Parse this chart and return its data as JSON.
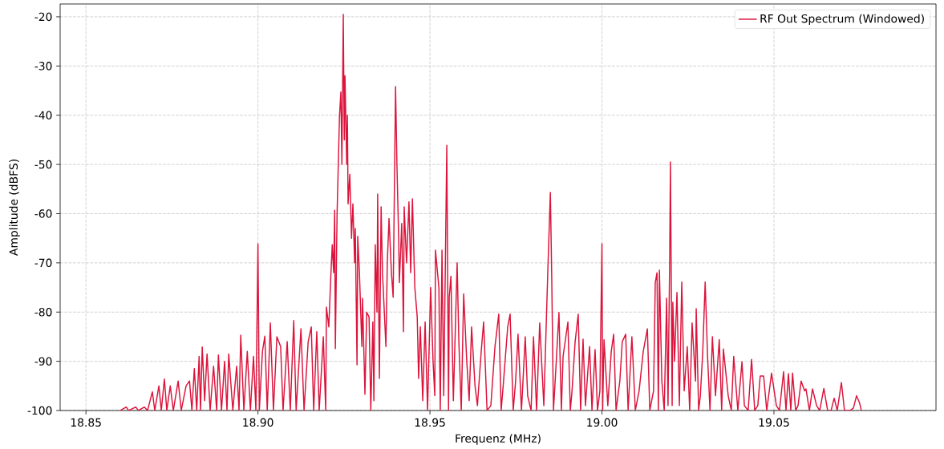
{
  "chart_data": {
    "type": "line",
    "xlabel": "Frequenz (MHz)",
    "ylabel": "Amplitude (dBFS)",
    "xlim": [
      18.8425,
      19.0971
    ],
    "ylim": [
      -100,
      -17.4
    ],
    "xticks": [
      18.85,
      {
        "value": 18.9,
        "label": "18.90"
      },
      18.95,
      {
        "value": 19.0,
        "label": "19.00"
      },
      19.05
    ],
    "yticks": [
      -100,
      -90,
      -80,
      -70,
      -60,
      -50,
      -40,
      -30,
      -20
    ],
    "grid": true,
    "legend": "top right",
    "x": [
      18.86,
      18.8617,
      18.8624,
      18.8645,
      18.8652,
      18.867,
      18.8679,
      18.8693,
      18.87,
      18.8712,
      18.8719,
      18.8728,
      18.8735,
      18.8745,
      18.8754,
      18.8768,
      18.8777,
      18.8791,
      18.8801,
      18.8808,
      18.8815,
      18.8822,
      18.8829,
      18.8833,
      18.8838,
      18.8845,
      18.8852,
      18.8861,
      18.8871,
      18.888,
      18.8885,
      18.8894,
      18.8903,
      18.891,
      18.8915,
      18.8927,
      18.8938,
      18.8945,
      18.895,
      18.8959,
      18.8969,
      18.8978,
      18.8987,
      18.8994,
      18.9,
      18.9004,
      18.9013,
      18.902,
      18.9027,
      18.9036,
      18.9045,
      18.9055,
      18.9066,
      18.9073,
      18.9085,
      18.9094,
      18.9104,
      18.9111,
      18.9125,
      18.9134,
      18.9146,
      18.9155,
      18.9162,
      18.9171,
      18.9178,
      18.919,
      18.9197,
      18.9199,
      18.9206,
      18.9211,
      18.9216,
      18.922,
      18.9223,
      18.9225,
      18.923,
      18.9237,
      18.9241,
      18.9244,
      18.9248,
      18.9251,
      18.9253,
      18.9258,
      18.926,
      18.9262,
      18.9267,
      18.9272,
      18.9276,
      18.9281,
      18.9283,
      18.9288,
      18.929,
      18.9295,
      18.9302,
      18.9304,
      18.9311,
      18.9316,
      18.9323,
      18.9328,
      18.9334,
      18.9337,
      18.9341,
      18.9346,
      18.9348,
      18.9353,
      18.9358,
      18.9362,
      18.9372,
      18.9376,
      18.9381,
      18.9388,
      18.9393,
      18.94,
      18.9404,
      18.9409,
      18.9411,
      18.9418,
      18.9423,
      18.9425,
      18.9432,
      18.9439,
      18.9444,
      18.9449,
      18.9456,
      18.9463,
      18.9467,
      18.9472,
      18.9479,
      18.9486,
      18.9493,
      18.9502,
      18.9509,
      18.9514,
      18.9516,
      18.9526,
      18.953,
      18.9535,
      18.954,
      18.9549,
      18.9554,
      18.9556,
      18.9561,
      18.9568,
      18.9579,
      18.9584,
      18.9591,
      18.9598,
      18.9607,
      18.9614,
      18.9621,
      18.9631,
      18.9638,
      18.9649,
      18.9656,
      18.9666,
      18.9677,
      18.9689,
      18.97,
      18.9707,
      18.9714,
      18.9726,
      18.9733,
      18.9742,
      18.9749,
      18.9756,
      18.9766,
      18.9777,
      18.9784,
      18.9794,
      18.9801,
      18.981,
      18.9819,
      18.9831,
      18.9843,
      18.985,
      18.9854,
      18.9859,
      18.9864,
      18.9875,
      18.9882,
      18.9887,
      18.9901,
      18.9908,
      18.9913,
      18.9922,
      18.9931,
      18.9938,
      18.9945,
      18.9952,
      18.9964,
      18.9971,
      18.998,
      18.9987,
      18.9994,
      19.0,
      19.0002,
      19.0006,
      19.0017,
      19.0027,
      19.0034,
      19.0041,
      19.0052,
      19.0059,
      19.0069,
      19.0076,
      19.0087,
      19.0097,
      19.0108,
      19.012,
      19.0132,
      19.0139,
      19.015,
      19.0155,
      19.016,
      19.0164,
      19.0167,
      19.0174,
      19.0181,
      19.0188,
      19.0192,
      19.0197,
      19.0199,
      19.0204,
      19.0206,
      19.0211,
      19.0218,
      19.0225,
      19.0232,
      19.0239,
      19.0248,
      19.0255,
      19.0262,
      19.0272,
      19.0274,
      19.0281,
      19.0286,
      19.0293,
      19.03,
      19.0307,
      19.0314,
      19.0321,
      19.033,
      19.0341,
      19.0348,
      19.0353,
      19.0367,
      19.0376,
      19.0383,
      19.0395,
      19.0407,
      19.0414,
      19.0425,
      19.0435,
      19.0444,
      19.0453,
      19.046,
      19.047,
      19.0479,
      19.0493,
      19.0507,
      19.0516,
      19.0528,
      19.0535,
      19.0542,
      19.0549,
      19.0554,
      19.0563,
      19.057,
      19.0579,
      19.0589,
      19.0593,
      19.0603,
      19.0612,
      19.0624,
      19.0633,
      19.0645,
      19.0656,
      19.0666,
      19.0675,
      19.0684,
      19.0696,
      19.0705,
      19.0721,
      19.0731,
      19.074,
      19.0749,
      19.0754
    ],
    "series": [
      {
        "name": "RF Out Spectrum (Windowed)",
        "color": "#dc143c",
        "values": [
          -100,
          -99.3,
          -100,
          -99.3,
          -100,
          -99.3,
          -100,
          -96.2,
          -100,
          -95,
          -100,
          -93.6,
          -100,
          -95,
          -100,
          -94,
          -100,
          -95,
          -94,
          -100,
          -91.5,
          -100,
          -89,
          -100,
          -87.1,
          -98,
          -88.5,
          -100,
          -91,
          -100,
          -88.7,
          -100,
          -90,
          -100,
          -88.5,
          -100,
          -91,
          -100,
          -84.7,
          -100,
          -88,
          -100,
          -89,
          -100,
          -66.1,
          -100,
          -88,
          -84.9,
          -100,
          -82.2,
          -100,
          -85,
          -87,
          -100,
          -86,
          -100,
          -81.7,
          -100,
          -83.4,
          -100,
          -86,
          -83,
          -100,
          -84,
          -100,
          -85,
          -100,
          -79,
          -83,
          -74,
          -66.3,
          -72,
          -59.3,
          -87.4,
          -60,
          -40.2,
          -35.3,
          -50,
          -19.5,
          -45,
          -32,
          -50,
          -40,
          -58,
          -52,
          -65,
          -58,
          -70,
          -63,
          -90.7,
          -64.6,
          -72,
          -87,
          -77.2,
          -96.7,
          -80,
          -81,
          -100,
          -82,
          -98,
          -66.3,
          -80,
          -56,
          -93.5,
          -58.6,
          -72,
          -87,
          -70,
          -61,
          -72,
          -77,
          -34.2,
          -50,
          -65,
          -74,
          -62,
          -84,
          -58.6,
          -70,
          -57.6,
          -72,
          -57,
          -75,
          -81,
          -93.5,
          -83,
          -98,
          -82,
          -100,
          -75,
          -90,
          -97,
          -67.4,
          -75,
          -100,
          -67.4,
          -97,
          -46.1,
          -100,
          -77,
          -72.7,
          -98,
          -70,
          -86,
          -100,
          -76.3,
          -90,
          -98,
          -83,
          -95,
          -99,
          -88,
          -82,
          -100,
          -99,
          -87,
          -80.4,
          -100,
          -94,
          -83,
          -80.4,
          -100,
          -94,
          -84.5,
          -100,
          -85,
          -97,
          -100,
          -85,
          -100,
          -82.2,
          -99,
          -70.8,
          -55.7,
          -73,
          -100,
          -94,
          -80.1,
          -100,
          -89,
          -82,
          -100,
          -96,
          -86,
          -80.4,
          -100,
          -85.5,
          -99,
          -87,
          -100,
          -87.6,
          -100,
          -96,
          -66.1,
          -100,
          -85.6,
          -99,
          -88,
          -84.5,
          -100,
          -94,
          -86,
          -84.5,
          -100,
          -85,
          -100,
          -96,
          -88,
          -83.4,
          -100,
          -96,
          -74,
          -72,
          -100,
          -71.5,
          -94,
          -100,
          -77.2,
          -99,
          -68,
          -49.5,
          -99,
          -78,
          -90,
          -76,
          -99,
          -73.9,
          -96,
          -87,
          -100,
          -82.2,
          -94,
          -79.3,
          -100,
          -97,
          -88,
          -73.9,
          -89,
          -100,
          -85,
          -97,
          -85.6,
          -100,
          -87.5,
          -97,
          -100,
          -89,
          -100,
          -90.1,
          -99,
          -100,
          -89.6,
          -100,
          -99,
          -93,
          -93,
          -100,
          -92.4,
          -99,
          -100,
          -92.1,
          -100,
          -92.5,
          -100,
          -92.4,
          -100,
          -99,
          -94,
          -96,
          -95.6,
          -100,
          -95.6,
          -99,
          -100,
          -95.5,
          -100,
          -100,
          -97.5,
          -100,
          -94.3,
          -100,
          -100,
          -99.5,
          -97,
          -98.5,
          -100
        ]
      }
    ]
  }
}
